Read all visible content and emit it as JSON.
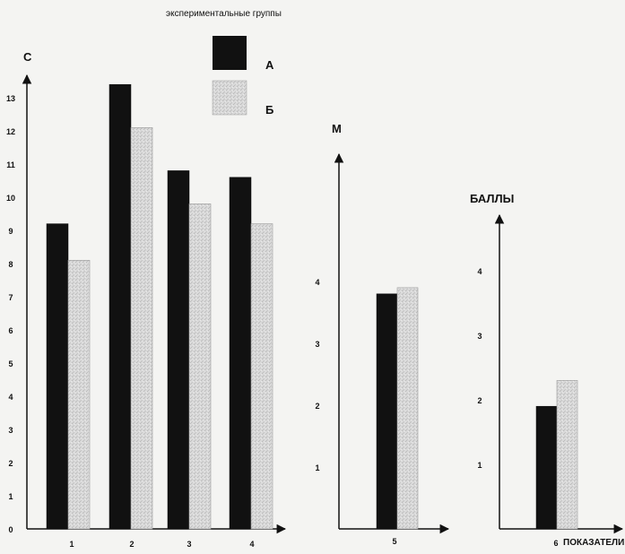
{
  "legend": {
    "title": "экспериментальные группы",
    "items": [
      {
        "label": "А",
        "color": "#111111"
      },
      {
        "label": "Б",
        "color": "#d6d6d6"
      }
    ]
  },
  "colors": {
    "series_a": "#111111",
    "series_b": "#d6d6d6",
    "axis": "#111111",
    "background": "#f4f4f2"
  },
  "chart_data": [
    {
      "type": "bar",
      "ylabel": "С",
      "categories": [
        "1",
        "2",
        "3",
        "4"
      ],
      "series": [
        {
          "name": "А",
          "values": [
            9.2,
            13.4,
            10.8,
            10.6
          ]
        },
        {
          "name": "Б",
          "values": [
            8.1,
            12.1,
            9.8,
            9.2
          ]
        }
      ],
      "ylim": [
        0,
        13
      ],
      "yticks": [
        "0",
        "1",
        "2",
        "3",
        "4",
        "5",
        "6",
        "7",
        "8",
        "9",
        "10",
        "11",
        "12",
        "13"
      ],
      "grid": false
    },
    {
      "type": "bar",
      "ylabel": "М",
      "categories": [
        "5"
      ],
      "series": [
        {
          "name": "А",
          "values": [
            3.8
          ]
        },
        {
          "name": "Б",
          "values": [
            3.9
          ]
        }
      ],
      "ylim": [
        0,
        4
      ],
      "yticks": [
        "1",
        "2",
        "3",
        "4"
      ],
      "grid": false
    },
    {
      "type": "bar",
      "ylabel": "БАЛЛЫ",
      "xlabel": "ПОКАЗАТЕЛИ",
      "categories": [
        "6"
      ],
      "series": [
        {
          "name": "А",
          "values": [
            1.9
          ]
        },
        {
          "name": "Б",
          "values": [
            2.3
          ]
        }
      ],
      "ylim": [
        0,
        4
      ],
      "yticks": [
        "1",
        "2",
        "3",
        "4"
      ],
      "grid": false
    }
  ]
}
